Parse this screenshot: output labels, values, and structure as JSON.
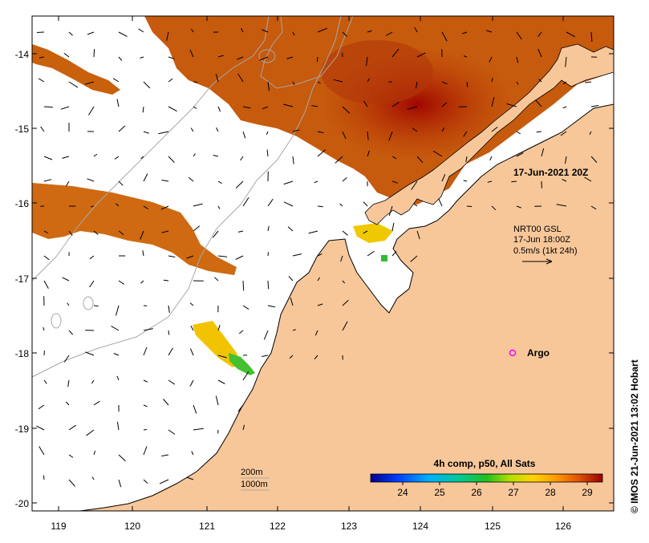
{
  "map": {
    "lon_ticks": [
      "119",
      "120",
      "121",
      "122",
      "123",
      "124",
      "125",
      "126"
    ],
    "lat_ticks": [
      "-14",
      "-15",
      "-16",
      "-17",
      "-18",
      "-19",
      "-20"
    ],
    "timestamp": "17-Jun-2021 20Z",
    "current_vectors": {
      "line1": "NRT00 GSL",
      "line2": "17-Jun 18:00Z",
      "line3": "0.5m/s (1kt 24h)"
    },
    "argo_label": "Argo",
    "isobaths": {
      "line1": "200m",
      "line2": "1000m"
    },
    "colorbar": {
      "title": "4h comp, p50, All Sats",
      "ticks": [
        "24",
        "25",
        "26",
        "27",
        "28",
        "29"
      ]
    },
    "credit": "IMOS 21-Jun-2021 13:02 Hobart",
    "credit_symbol": "©",
    "colors": {
      "land": "#f7c79a",
      "sst_hot": "#a81a00",
      "sst_warm": "#c9600a",
      "sst_cool": "#e38a1c",
      "argo": "#ff00ff"
    }
  }
}
